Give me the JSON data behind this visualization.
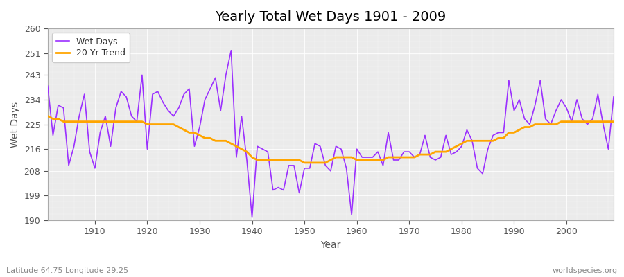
{
  "title": "Yearly Total Wet Days 1901 - 2009",
  "xlabel": "Year",
  "ylabel": "Wet Days",
  "subtitle": "Latitude 64.75 Longitude 29.25",
  "watermark": "worldspecies.org",
  "wet_days_color": "#9B30FF",
  "trend_color": "#FFA500",
  "fig_bg_color": "#FFFFFF",
  "plot_bg_color": "#EBEBEB",
  "ylim": [
    190,
    260
  ],
  "yticks": [
    190,
    199,
    208,
    216,
    225,
    234,
    243,
    251,
    260
  ],
  "xlim": [
    1901,
    2009
  ],
  "xticks": [
    1910,
    1920,
    1930,
    1940,
    1950,
    1960,
    1970,
    1980,
    1990,
    2000
  ],
  "years": [
    1901,
    1902,
    1903,
    1904,
    1905,
    1906,
    1907,
    1908,
    1909,
    1910,
    1911,
    1912,
    1913,
    1914,
    1915,
    1916,
    1917,
    1918,
    1919,
    1920,
    1921,
    1922,
    1923,
    1924,
    1925,
    1926,
    1927,
    1928,
    1929,
    1930,
    1931,
    1932,
    1933,
    1934,
    1935,
    1936,
    1937,
    1938,
    1939,
    1940,
    1941,
    1942,
    1943,
    1944,
    1945,
    1946,
    1947,
    1948,
    1949,
    1950,
    1951,
    1952,
    1953,
    1954,
    1955,
    1956,
    1957,
    1958,
    1959,
    1960,
    1961,
    1962,
    1963,
    1964,
    1965,
    1966,
    1967,
    1968,
    1969,
    1970,
    1971,
    1972,
    1973,
    1974,
    1975,
    1976,
    1977,
    1978,
    1979,
    1980,
    1981,
    1982,
    1983,
    1984,
    1985,
    1986,
    1987,
    1988,
    1989,
    1990,
    1991,
    1992,
    1993,
    1994,
    1995,
    1996,
    1997,
    1998,
    1999,
    2000,
    2001,
    2002,
    2003,
    2004,
    2005,
    2006,
    2007,
    2008,
    2009
  ],
  "wet_days": [
    239,
    221,
    232,
    231,
    210,
    217,
    228,
    236,
    215,
    209,
    222,
    228,
    217,
    231,
    237,
    235,
    228,
    226,
    243,
    216,
    236,
    237,
    233,
    230,
    228,
    231,
    236,
    238,
    217,
    224,
    234,
    238,
    242,
    230,
    243,
    252,
    213,
    228,
    212,
    191,
    217,
    216,
    215,
    201,
    202,
    201,
    210,
    210,
    200,
    209,
    209,
    218,
    217,
    210,
    208,
    217,
    216,
    209,
    192,
    216,
    213,
    213,
    213,
    215,
    210,
    222,
    212,
    212,
    215,
    215,
    213,
    214,
    221,
    213,
    212,
    213,
    221,
    214,
    215,
    217,
    223,
    219,
    209,
    207,
    216,
    221,
    222,
    222,
    241,
    230,
    234,
    227,
    225,
    232,
    241,
    227,
    225,
    230,
    234,
    231,
    226,
    234,
    227,
    225,
    227,
    236,
    225,
    216,
    235
  ],
  "trend": [
    228,
    227,
    227,
    226,
    226,
    226,
    226,
    226,
    226,
    226,
    226,
    226,
    226,
    226,
    226,
    226,
    226,
    226,
    226,
    225,
    225,
    225,
    225,
    225,
    225,
    224,
    223,
    222,
    222,
    221,
    220,
    220,
    219,
    219,
    219,
    218,
    217,
    216,
    215,
    213,
    212,
    212,
    212,
    212,
    212,
    212,
    212,
    212,
    212,
    211,
    211,
    211,
    211,
    211,
    212,
    213,
    213,
    213,
    213,
    212,
    212,
    212,
    212,
    212,
    212,
    213,
    213,
    213,
    213,
    213,
    213,
    214,
    214,
    214,
    215,
    215,
    215,
    216,
    217,
    218,
    219,
    219,
    219,
    219,
    219,
    219,
    220,
    220,
    222,
    222,
    223,
    224,
    224,
    225,
    225,
    225,
    225,
    225,
    226,
    226,
    226,
    226,
    226,
    226,
    226,
    226,
    226,
    226,
    226
  ]
}
